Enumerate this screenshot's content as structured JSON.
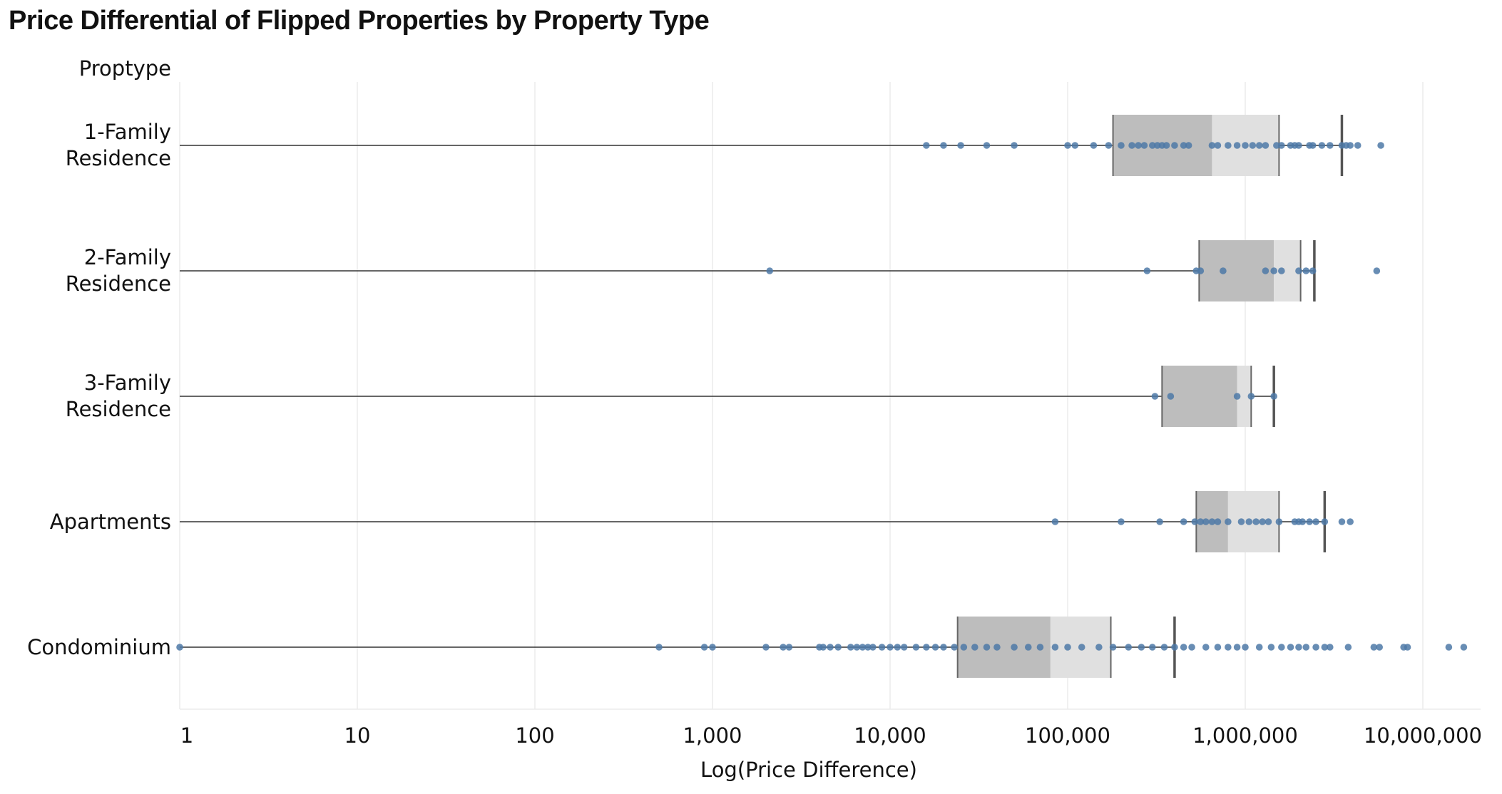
{
  "chart_data": {
    "type": "boxplot",
    "title": "Price Differential of Flipped Properties by Property Type",
    "row_header": "Proptype",
    "xlabel": "Log(Price Difference)",
    "x_scale": "log",
    "xlim": [
      1,
      20000000
    ],
    "x_ticks": [
      "1",
      "10",
      "100",
      "1,000",
      "10,000",
      "100,000",
      "1,000,000",
      "10,000,000"
    ],
    "grid": true,
    "colors": {
      "box_lower": "#bdbdbd",
      "box_upper": "#e0e0e0",
      "point": "#4e79a7",
      "whisker_line": "#333333"
    },
    "categories": [
      {
        "label": [
          "1-Family",
          "Residence"
        ],
        "q1": 180000,
        "median": 650000,
        "q3": 1550000,
        "upper_whisker": 3500000,
        "points": [
          16000,
          20000,
          25000,
          35000,
          50000,
          100000,
          110000,
          140000,
          170000,
          200000,
          230000,
          250000,
          270000,
          300000,
          320000,
          340000,
          360000,
          400000,
          450000,
          480000,
          650000,
          700000,
          800000,
          900000,
          1000000,
          1100000,
          1200000,
          1300000,
          1500000,
          1600000,
          1800000,
          1900000,
          2000000,
          2300000,
          2400000,
          2700000,
          3000000,
          3500000,
          3700000,
          3900000,
          4300000,
          5800000
        ]
      },
      {
        "label": [
          "2-Family",
          "Residence"
        ],
        "q1": 550000,
        "median": 1450000,
        "q3": 2050000,
        "upper_whisker": 2450000,
        "points": [
          2100,
          280000,
          530000,
          560000,
          750000,
          1300000,
          1450000,
          1600000,
          2000000,
          2200000,
          2400000,
          5500000
        ]
      },
      {
        "label": [
          "3-Family",
          "Residence"
        ],
        "q1": 340000,
        "median": 900000,
        "q3": 1080000,
        "upper_whisker": 1450000,
        "points": [
          310000,
          380000,
          900000,
          1080000,
          1450000
        ]
      },
      {
        "label": [
          "Apartments"
        ],
        "q1": 530000,
        "median": 800000,
        "q3": 1550000,
        "upper_whisker": 2800000,
        "points": [
          85000,
          200000,
          330000,
          450000,
          520000,
          560000,
          600000,
          650000,
          700000,
          800000,
          950000,
          1050000,
          1150000,
          1250000,
          1350000,
          1550000,
          1900000,
          2000000,
          2100000,
          2300000,
          2500000,
          2800000,
          3500000,
          3900000
        ]
      },
      {
        "label": [
          "Condominium"
        ],
        "q1": 24000,
        "median": 80000,
        "q3": 175000,
        "upper_whisker": 400000,
        "points": [
          1,
          500,
          900,
          1000,
          2000,
          2500,
          2700,
          4000,
          4200,
          4600,
          5100,
          6000,
          6500,
          7000,
          7500,
          8000,
          9000,
          10000,
          11000,
          12000,
          14000,
          16000,
          18000,
          20000,
          23000,
          26000,
          30000,
          35000,
          40000,
          50000,
          60000,
          70000,
          85000,
          100000,
          120000,
          150000,
          180000,
          220000,
          260000,
          300000,
          350000,
          400000,
          450000,
          500000,
          600000,
          700000,
          800000,
          900000,
          1000000,
          1200000,
          1400000,
          1600000,
          1800000,
          2000000,
          2200000,
          2500000,
          2800000,
          3000000,
          3800000,
          5300000,
          5700000,
          7800000,
          8200000,
          14000000,
          17000000
        ]
      }
    ]
  }
}
